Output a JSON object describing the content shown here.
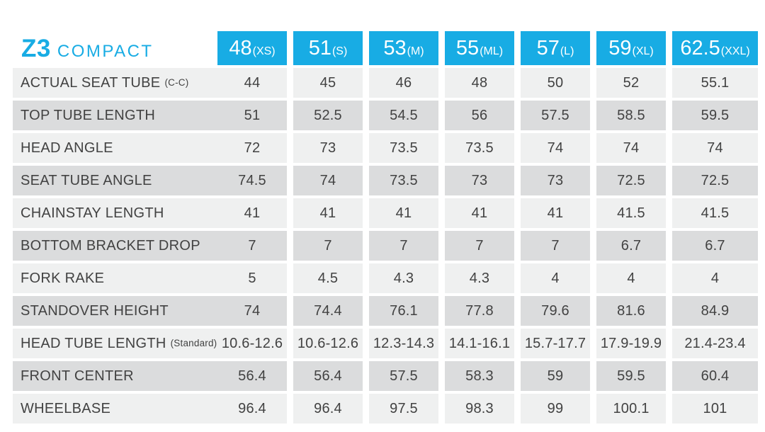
{
  "title": {
    "model": "Z3",
    "variant": "COMPACT"
  },
  "colors": {
    "accent": "#18ace4",
    "row_light": "#eff0f0",
    "row_dark": "#dbdcdd",
    "text": "#424242",
    "header_text": "#ffffff"
  },
  "chart_data": {
    "type": "table",
    "title": "Z3 COMPACT",
    "columns": [
      "48(XS)",
      "51(S)",
      "53(M)",
      "55(ML)",
      "57(L)",
      "59(XL)",
      "62.5(XXL)"
    ],
    "header": {
      "sizes": [
        "48",
        "51",
        "53",
        "55",
        "57",
        "59",
        "62.5"
      ],
      "fits": [
        "(XS)",
        "(S)",
        "(M)",
        "(ML)",
        "(L)",
        "(XL)",
        "(XXL)"
      ]
    },
    "rows": [
      {
        "label": "ACTUAL SEAT TUBE",
        "note": "(C-C)",
        "values": [
          "44",
          "45",
          "46",
          "48",
          "50",
          "52",
          "55.1"
        ]
      },
      {
        "label": "TOP TUBE LENGTH",
        "note": "",
        "values": [
          "51",
          "52.5",
          "54.5",
          "56",
          "57.5",
          "58.5",
          "59.5"
        ]
      },
      {
        "label": "HEAD ANGLE",
        "note": "",
        "values": [
          "72",
          "73",
          "73.5",
          "73.5",
          "74",
          "74",
          "74"
        ]
      },
      {
        "label": "SEAT TUBE ANGLE",
        "note": "",
        "values": [
          "74.5",
          "74",
          "73.5",
          "73",
          "73",
          "72.5",
          "72.5"
        ]
      },
      {
        "label": "CHAINSTAY LENGTH",
        "note": "",
        "values": [
          "41",
          "41",
          "41",
          "41",
          "41",
          "41.5",
          "41.5"
        ]
      },
      {
        "label": "BOTTOM BRACKET DROP",
        "note": "",
        "values": [
          "7",
          "7",
          "7",
          "7",
          "7",
          "6.7",
          "6.7"
        ]
      },
      {
        "label": "FORK RAKE",
        "note": "",
        "values": [
          "5",
          "4.5",
          "4.3",
          "4.3",
          "4",
          "4",
          "4"
        ]
      },
      {
        "label": "STANDOVER HEIGHT",
        "note": "",
        "values": [
          "74",
          "74.4",
          "76.1",
          "77.8",
          "79.6",
          "81.6",
          "84.9"
        ]
      },
      {
        "label": "HEAD TUBE LENGTH",
        "note": "(Standard)",
        "values": [
          "10.6-12.6",
          "10.6-12.6",
          "12.3-14.3",
          "14.1-16.1",
          "15.7-17.7",
          "17.9-19.9",
          "21.4-23.4"
        ]
      },
      {
        "label": "FRONT CENTER",
        "note": "",
        "values": [
          "56.4",
          "56.4",
          "57.5",
          "58.3",
          "59",
          "59.5",
          "60.4"
        ]
      },
      {
        "label": "WHEELBASE",
        "note": "",
        "values": [
          "96.4",
          "96.4",
          "97.5",
          "98.3",
          "99",
          "100.1",
          "101"
        ]
      }
    ]
  }
}
